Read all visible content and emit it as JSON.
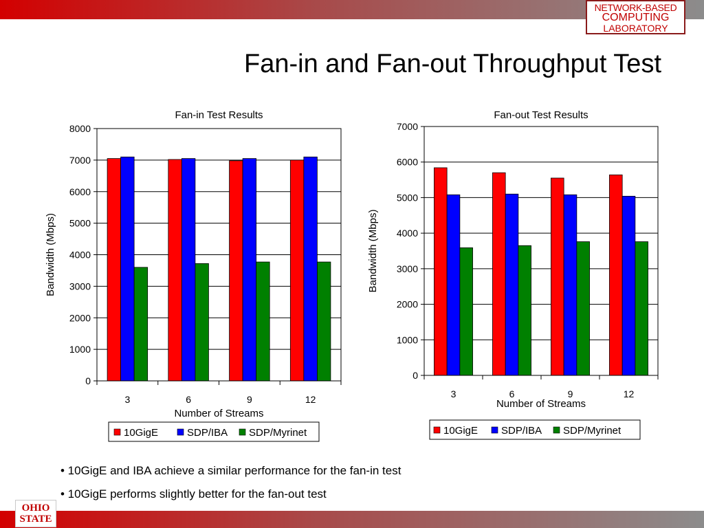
{
  "header": {
    "lab_logo": {
      "line1": "NETWORK-BASED",
      "line2": "COMPUTING",
      "line3": "LABORATORY"
    },
    "title": "Fan-in and Fan-out Throughput Test"
  },
  "footer": {
    "logo": {
      "line1": "OHIO",
      "line2": "STATE"
    }
  },
  "bullets": [
    "• 10GigE and IBA achieve a similar performance for the fan-in test",
    "• 10GigE performs slightly better for the fan-out test"
  ],
  "colors": {
    "s1": "#ff0000",
    "s2": "#0000ff",
    "s3": "#008000",
    "bar_brand": "#c00000"
  },
  "chart_data": [
    {
      "type": "bar",
      "title": "Fan-in Test Results",
      "xlabel": "Number of Streams",
      "ylabel": "Bandwidth (Mbps)",
      "categories": [
        "3",
        "6",
        "9",
        "12"
      ],
      "ylim": [
        0,
        8000
      ],
      "yticks": [
        0,
        1000,
        2000,
        3000,
        4000,
        5000,
        6000,
        7000,
        8000
      ],
      "grid": true,
      "legend_position": "bottom",
      "series": [
        {
          "name": "10GigE",
          "color": "#ff0000",
          "values": [
            7050,
            7020,
            6980,
            7000
          ]
        },
        {
          "name": "SDP/IBA",
          "color": "#0000ff",
          "values": [
            7100,
            7050,
            7050,
            7100
          ]
        },
        {
          "name": "SDP/Myrinet",
          "color": "#008000",
          "values": [
            3600,
            3720,
            3770,
            3770
          ]
        }
      ]
    },
    {
      "type": "bar",
      "title": "Fan-out Test Results",
      "xlabel": "Number of Streams",
      "ylabel": "Bandwidth (Mbps)",
      "categories": [
        "3",
        "6",
        "9",
        "12"
      ],
      "ylim": [
        0,
        7000
      ],
      "yticks": [
        0,
        1000,
        2000,
        3000,
        4000,
        5000,
        6000,
        7000
      ],
      "grid": true,
      "legend_position": "bottom",
      "series": [
        {
          "name": "10GigE",
          "color": "#ff0000",
          "values": [
            5840,
            5700,
            5550,
            5640
          ]
        },
        {
          "name": "SDP/IBA",
          "color": "#0000ff",
          "values": [
            5080,
            5100,
            5080,
            5040
          ]
        },
        {
          "name": "SDP/Myrinet",
          "color": "#008000",
          "values": [
            3590,
            3650,
            3760,
            3760
          ]
        }
      ]
    }
  ]
}
